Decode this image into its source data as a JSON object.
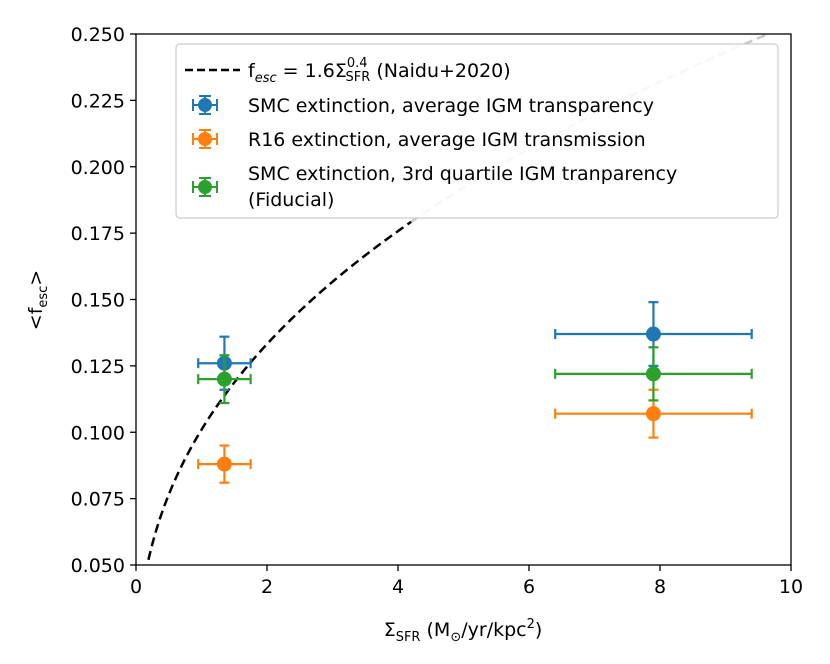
{
  "chart_data": {
    "type": "scatter",
    "xlabel_main": "Σ",
    "xlabel_sub": "SFR",
    "xlabel_rest": " (M",
    "xlabel_sun": "⊙",
    "xlabel_units": "/yr/kpc",
    "xlabel_sup": "2",
    "xlabel_close": ")",
    "ylabel_main": "<f",
    "ylabel_sub": "esc",
    "ylabel_close": ">",
    "xlim": [
      0,
      10
    ],
    "ylim": [
      0.05,
      0.25
    ],
    "xticks": [
      0,
      2,
      4,
      6,
      8,
      10
    ],
    "xtick_labels": [
      "0",
      "2",
      "4",
      "6",
      "8",
      "10"
    ],
    "yticks": [
      0.05,
      0.075,
      0.1,
      0.125,
      0.15,
      0.175,
      0.2,
      0.225,
      0.25
    ],
    "ytick_labels": [
      "0.050",
      "0.075",
      "0.100",
      "0.125",
      "0.150",
      "0.175",
      "0.200",
      "0.225",
      "0.250"
    ],
    "model_curve": {
      "name": "fesc = 1.6ΣSFR^0.4 (Naidu+2020)",
      "coefficient": 1.6,
      "exponent": 0.4,
      "solid_until_x": 4.2,
      "color_solid": "#000000",
      "color_faded": "#c8c8c8"
    },
    "series": [
      {
        "name": "SMC extinction, average IGM transparency",
        "color": "#1f77b4",
        "points": [
          {
            "x": 1.35,
            "y": 0.126,
            "xerr": [
              0.4,
              0.4
            ],
            "yerr": [
              0.01,
              0.01
            ]
          },
          {
            "x": 7.9,
            "y": 0.137,
            "xerr": [
              1.5,
              1.5
            ],
            "yerr": [
              0.012,
              0.012
            ]
          }
        ]
      },
      {
        "name": "R16 extinction, average IGM transmission",
        "color": "#ff7f0e",
        "points": [
          {
            "x": 1.35,
            "y": 0.088,
            "xerr": [
              0.4,
              0.4
            ],
            "yerr": [
              0.007,
              0.007
            ]
          },
          {
            "x": 7.9,
            "y": 0.107,
            "xerr": [
              1.5,
              1.5
            ],
            "yerr": [
              0.009,
              0.009
            ]
          }
        ]
      },
      {
        "name": "SMC extinction, 3rd quartile IGM tranparency",
        "name_line2": "(Fiducial)",
        "color": "#2ca02c",
        "points": [
          {
            "x": 1.35,
            "y": 0.12,
            "xerr": [
              0.4,
              0.4
            ],
            "yerr": [
              0.009,
              0.009
            ]
          },
          {
            "x": 7.9,
            "y": 0.122,
            "xerr": [
              1.5,
              1.5
            ],
            "yerr": [
              0.01,
              0.01
            ]
          }
        ]
      }
    ],
    "legend": {
      "location": "upper-center",
      "curve_text_prefix": "f",
      "curve_text_sub": "esc",
      "curve_text_mid": " = 1.6Σ",
      "curve_text_sup": "0.4",
      "curve_text_subsfr": "SFR",
      "curve_text_suffix": " (Naidu+2020)",
      "entries": [
        "SMC extinction, average IGM transparency",
        "R16 extinction, average IGM transmission",
        "SMC extinction, 3rd quartile IGM tranparency",
        "(Fiducial)"
      ]
    }
  }
}
